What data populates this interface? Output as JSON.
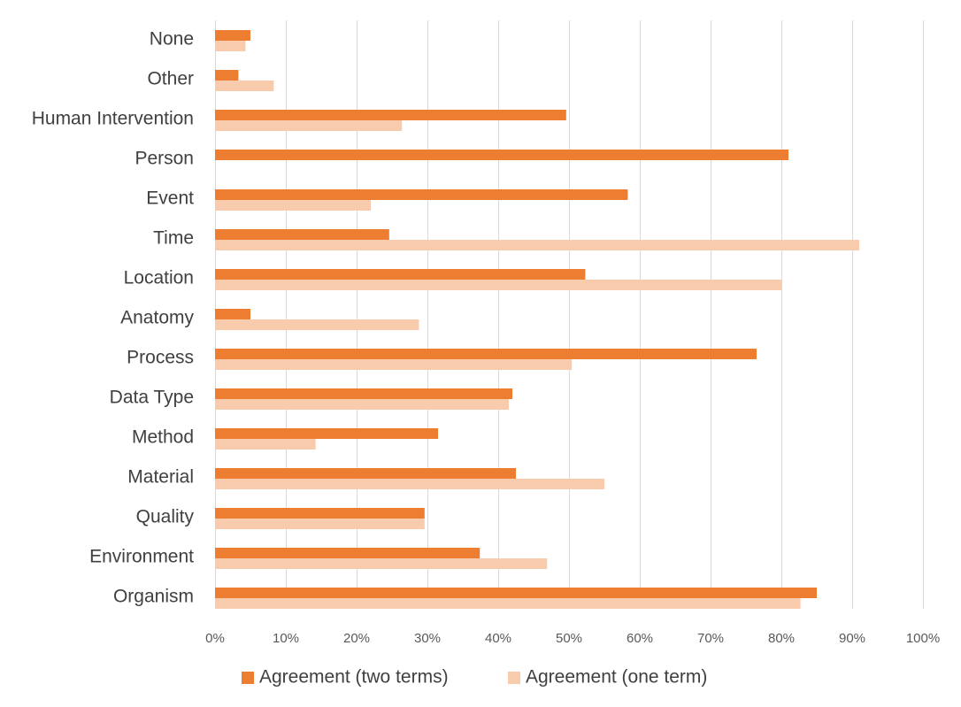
{
  "chart_data": {
    "type": "bar",
    "orientation": "horizontal",
    "title": "",
    "xlabel": "",
    "ylabel": "",
    "categories": [
      "None",
      "Other",
      "Human Intervention",
      "Person",
      "Event",
      "Time",
      "Location",
      "Anatomy",
      "Process",
      "Data Type",
      "Method",
      "Material",
      "Quality",
      "Environment",
      "Organism"
    ],
    "series": [
      {
        "name": "Agreement (two terms)",
        "color": "#ed7d31",
        "values": [
          5,
          3.3,
          49.6,
          81,
          58.3,
          24.6,
          52.3,
          5,
          76.5,
          42,
          31.5,
          42.5,
          29.6,
          37.4,
          85
        ]
      },
      {
        "name": "Agreement (one term)",
        "color": "#f8cbad",
        "values": [
          4.3,
          8.3,
          26.4,
          0,
          22,
          91,
          80,
          28.8,
          50.4,
          41.5,
          14.2,
          55,
          29.6,
          46.9,
          82.7
        ]
      }
    ],
    "xlim": [
      0,
      100
    ],
    "ticks": [
      "0%",
      "10%",
      "20%",
      "30%",
      "40%",
      "50%",
      "60%",
      "70%",
      "80%",
      "90%",
      "100%"
    ],
    "grid": true,
    "legend": "bottom"
  }
}
